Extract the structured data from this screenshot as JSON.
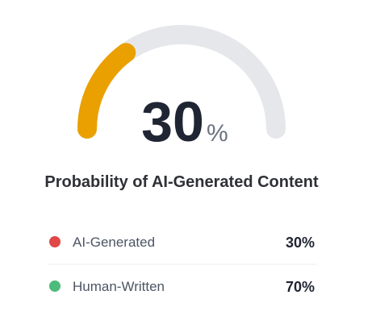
{
  "chart_data": {
    "type": "gauge",
    "title": "Probability of AI-Generated Content",
    "value": 30,
    "unit": "%",
    "range": [
      0,
      100
    ],
    "color": "#eaa000",
    "track_color": "#e5e7eb",
    "categories": [
      "AI-Generated",
      "Human-Written"
    ],
    "values": [
      30,
      70
    ],
    "value_labels": [
      "30%",
      "70%"
    ],
    "colors": [
      "#e04848",
      "#4dbb7a"
    ]
  }
}
